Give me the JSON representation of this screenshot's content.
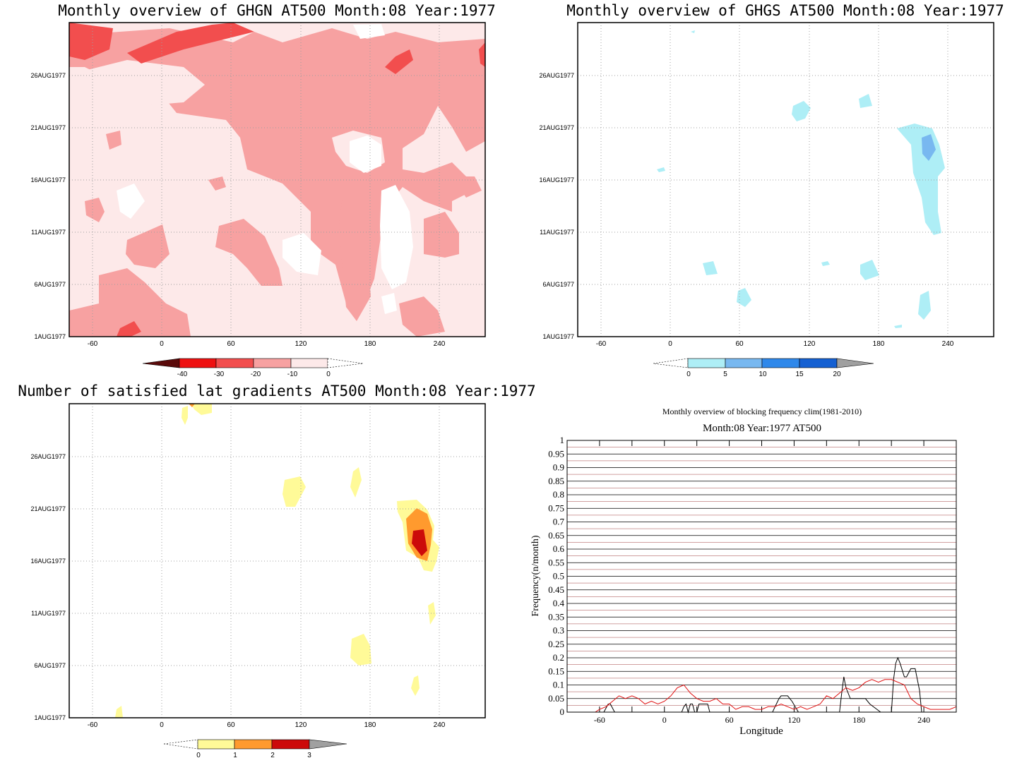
{
  "panels": {
    "ghgn": {
      "title": "Monthly overview of GHGN AT500 Month:08 Year:1977",
      "x_ticks": [
        "-60",
        "0",
        "60",
        "120",
        "180",
        "240"
      ],
      "y_ticks": [
        "1AUG1977",
        "6AUG1977",
        "11AUG1977",
        "16AUG1977",
        "21AUG1977",
        "26AUG1977"
      ],
      "colorbar": {
        "labels": [
          "-40",
          "-30",
          "-20",
          "-10",
          "0"
        ],
        "colors": [
          "#5a0a0a",
          "#ee1111",
          "#f24e4e",
          "#f7a1a1",
          "#fde9e9",
          "#ffffff"
        ]
      }
    },
    "ghgs": {
      "title": "Monthly overview of GHGS AT500 Month:08 Year:1977",
      "x_ticks": [
        "-60",
        "0",
        "60",
        "120",
        "180",
        "240"
      ],
      "y_ticks": [
        "1AUG1977",
        "6AUG1977",
        "11AUG1977",
        "16AUG1977",
        "21AUG1977",
        "26AUG1977"
      ],
      "colorbar": {
        "labels": [
          "0",
          "5",
          "10",
          "15",
          "20"
        ],
        "colors": [
          "#ffffff",
          "#aeeef6",
          "#78b8f0",
          "#2f88ea",
          "#1560d2",
          "#a0a0a0"
        ]
      }
    },
    "gradients": {
      "title": "Number of satisfied lat gradients AT500 Month:08 Year:1977",
      "x_ticks": [
        "-60",
        "0",
        "60",
        "120",
        "180",
        "240"
      ],
      "y_ticks": [
        "1AUG1977",
        "6AUG1977",
        "11AUG1977",
        "16AUG1977",
        "21AUG1977",
        "26AUG1977"
      ],
      "colorbar": {
        "labels": [
          "0",
          "1",
          "2",
          "3"
        ],
        "colors": [
          "#ffffff",
          "#fffa98",
          "#ff9a2e",
          "#cc0a0a",
          "#a0a0a0"
        ]
      }
    }
  },
  "chart_data": {
    "type": "line",
    "title": "Monthly overview of blocking frequency clim(1981-2010)",
    "subtitle": "Month:08 Year:1977  AT500",
    "xlabel": "Longitude",
    "ylabel": "Frequency(n/month)",
    "xlim": [
      -90,
      270
    ],
    "ylim": [
      0,
      1
    ],
    "x_ticks": [
      "-60",
      "0",
      "60",
      "120",
      "180",
      "240"
    ],
    "y_ticks": [
      "0",
      "0.05",
      "0.1",
      "0.15",
      "0.2",
      "0.25",
      "0.3",
      "0.35",
      "0.4",
      "0.45",
      "0.5",
      "0.55",
      "0.6",
      "0.65",
      "0.7",
      "0.75",
      "0.8",
      "0.85",
      "0.9",
      "0.95",
      "1"
    ],
    "grid": true,
    "colors": {
      "black_series": "#000000",
      "red_series": "#e01010",
      "grid_dark": "#000000",
      "grid_red": "#c08080"
    },
    "series": [
      {
        "color": "black",
        "x": [
          -90,
          -64,
          -62,
          -58,
          -56,
          -52,
          -50,
          -46,
          -44,
          -40,
          -36,
          -30,
          -26,
          -20,
          -14,
          -8,
          -4,
          0,
          4,
          8,
          14,
          16,
          18,
          20,
          22,
          24,
          26,
          28,
          30,
          32,
          34,
          36,
          38,
          40,
          42,
          46,
          50,
          56,
          60,
          64,
          70,
          78,
          86,
          100,
          106,
          108,
          114,
          118,
          124,
          130,
          136,
          142,
          148,
          154,
          158,
          162,
          164,
          166,
          168,
          172,
          178,
          186,
          190,
          200,
          208,
          210,
          212,
          214,
          216,
          218,
          222,
          224,
          228,
          230,
          232,
          236,
          238,
          242,
          246,
          252,
          260,
          270
        ],
        "y": [
          0,
          0,
          0,
          0,
          0,
          0.03,
          0.03,
          0,
          0,
          0,
          0,
          0,
          0,
          0,
          0,
          0,
          0,
          0,
          0,
          0,
          0,
          0,
          0.02,
          0.03,
          0,
          0.03,
          0.03,
          0,
          0,
          0.03,
          0.03,
          0.03,
          0.03,
          0.03,
          0,
          0,
          0,
          0,
          0,
          0,
          0,
          0,
          0,
          0,
          0.05,
          0.06,
          0.06,
          0.04,
          0,
          0,
          0,
          0,
          0,
          0,
          0,
          0,
          0.07,
          0.13,
          0.09,
          0.05,
          0.05,
          0.05,
          0.03,
          0,
          0,
          0,
          0.12,
          0.18,
          0.2,
          0.18,
          0.13,
          0.13,
          0.16,
          0.16,
          0.16,
          0.08,
          0,
          0,
          0,
          0,
          0,
          0
        ]
      },
      {
        "color": "red",
        "x": [
          -90,
          -78,
          -72,
          -68,
          -64,
          -60,
          -54,
          -48,
          -42,
          -36,
          -30,
          -24,
          -18,
          -12,
          -6,
          0,
          6,
          12,
          18,
          24,
          30,
          36,
          42,
          48,
          54,
          60,
          66,
          72,
          78,
          84,
          90,
          96,
          102,
          108,
          114,
          120,
          126,
          132,
          138,
          144,
          150,
          156,
          162,
          168,
          174,
          180,
          186,
          192,
          198,
          204,
          210,
          216,
          222,
          228,
          234,
          240,
          246,
          252,
          258,
          264,
          270
        ],
        "y": [
          0,
          0,
          0,
          0,
          0,
          0.01,
          0.02,
          0.04,
          0.06,
          0.05,
          0.06,
          0.05,
          0.03,
          0.04,
          0.03,
          0.04,
          0.06,
          0.09,
          0.1,
          0.07,
          0.05,
          0.04,
          0.04,
          0.05,
          0.03,
          0.03,
          0.01,
          0.02,
          0.02,
          0.01,
          0.01,
          0.02,
          0.02,
          0.03,
          0.02,
          0.01,
          0.02,
          0.01,
          0.02,
          0.03,
          0.06,
          0.05,
          0.07,
          0.09,
          0.08,
          0.09,
          0.11,
          0.12,
          0.11,
          0.12,
          0.12,
          0.11,
          0.1,
          0.05,
          0.03,
          0.02,
          0.01,
          0.01,
          0.01,
          0.01,
          0.02
        ]
      }
    ]
  }
}
